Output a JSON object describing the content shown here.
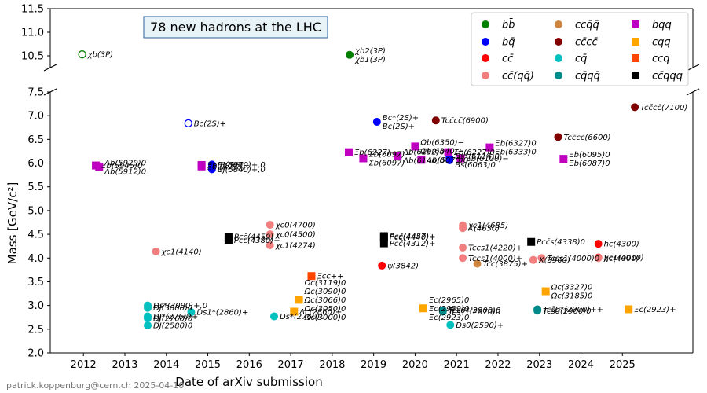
{
  "chart_data": {
    "type": "scatter",
    "title": "78 new hadrons at the LHC",
    "xlabel": "Date of arXiv submission",
    "ylabel": "Mass [GeV/c²]",
    "credit": "patrick.koppenburg@cern.ch 2025-04-10",
    "xlim": [
      2011.2,
      2026.7
    ],
    "ylim_lower": [
      2.0,
      7.5
    ],
    "ylim_upper": [
      10.25,
      11.5
    ],
    "legend_position": "top-right",
    "xticks": [
      "2012",
      "2013",
      "2014",
      "2015",
      "2016",
      "2017",
      "2018",
      "2019",
      "2020",
      "2021",
      "2022",
      "2023",
      "2024",
      "2025"
    ],
    "yticks_lower": [
      "2.0",
      "2.5",
      "3.0",
      "3.5",
      "4.0",
      "4.5",
      "5.0",
      "5.5",
      "6.0",
      "6.5",
      "7.0",
      "7.5"
    ],
    "yticks_upper": [
      "10.5",
      "11.0",
      "11.5"
    ],
    "categories": [
      {
        "key": "bb",
        "name": "bb̄",
        "color": "#008000",
        "shape": "circle"
      },
      {
        "key": "bq",
        "name": "bq̄",
        "color": "#0000ff",
        "shape": "circle"
      },
      {
        "key": "cc",
        "name": "cc̄",
        "color": "#ff0000",
        "shape": "circle"
      },
      {
        "key": "ccqq",
        "name": "cc̄(qq̄)",
        "color": "#f08080",
        "shape": "circle"
      },
      {
        "key": "ccqqbar",
        "name": "ccq̄q̄",
        "color": "#cd853f",
        "shape": "circle"
      },
      {
        "key": "cccc",
        "name": "cc̄cc̄",
        "color": "#800000",
        "shape": "circle"
      },
      {
        "key": "cq",
        "name": "cq̄",
        "color": "#00c0c0",
        "shape": "circle"
      },
      {
        "key": "cqqq",
        "name": "cq̄qq̄",
        "color": "#008b8b",
        "shape": "circle"
      },
      {
        "key": "bqq",
        "name": "bqq",
        "color": "#c000c0",
        "shape": "square"
      },
      {
        "key": "cqq",
        "name": "cqq",
        "color": "#ffa500",
        "shape": "square"
      },
      {
        "key": "ccq",
        "name": "ccq",
        "color": "#ff4500",
        "shape": "square"
      },
      {
        "key": "ccqqq",
        "name": "cc̄qqq",
        "color": "#000000",
        "shape": "square"
      }
    ],
    "points": [
      {
        "cat": "bb",
        "x": 2011.97,
        "y": 10.53,
        "open": true,
        "labels": [
          "χb(3P)"
        ]
      },
      {
        "cat": "bb",
        "x": 2018.42,
        "y": 10.52,
        "labels": [
          "χb2(3P)",
          "χb1(3P)"
        ]
      },
      {
        "cat": "bq",
        "x": 2014.53,
        "y": 6.84,
        "open": true,
        "labels": [
          "Bc(2S)+"
        ]
      },
      {
        "cat": "bq",
        "x": 2015.1,
        "y": 5.97,
        "labels": [
          "BJ(5970)+,0"
        ]
      },
      {
        "cat": "bq",
        "x": 2015.1,
        "y": 5.87,
        "labels": [
          "BJ(5840)+,0"
        ]
      },
      {
        "cat": "bq",
        "x": 2019.08,
        "y": 6.87,
        "labels": [
          "Bc*(2S)+",
          "Bc(2S)+"
        ]
      },
      {
        "cat": "bq",
        "x": 2020.83,
        "y": 6.11,
        "labels": []
      },
      {
        "cat": "bq",
        "x": 2020.83,
        "y": 6.06,
        "labels": [
          "Bs*(6114)0",
          "Bs(6063)0"
        ]
      },
      {
        "cat": "cc",
        "x": 2019.2,
        "y": 3.84,
        "labels": [
          "ψ(3842)"
        ]
      },
      {
        "cat": "cc",
        "x": 2024.42,
        "y": 4.3,
        "labels": [
          "hc(4300)"
        ]
      },
      {
        "cat": "cc",
        "x": 2024.42,
        "y": 4.01,
        "labels": [
          "χc1(4010)"
        ]
      },
      {
        "cat": "ccqq",
        "x": 2013.75,
        "y": 4.14,
        "labels": [
          "χc1(4140)"
        ]
      },
      {
        "cat": "ccqq",
        "x": 2016.5,
        "y": 4.7,
        "labels": [
          "χc0(4700)"
        ]
      },
      {
        "cat": "ccqq",
        "x": 2016.5,
        "y": 4.5,
        "labels": [
          "χc0(4500)"
        ]
      },
      {
        "cat": "ccqq",
        "x": 2016.5,
        "y": 4.27,
        "labels": [
          "χc1(4274)"
        ]
      },
      {
        "cat": "ccqq",
        "x": 2021.15,
        "y": 4.69,
        "labels": [
          "χc1(4685)"
        ]
      },
      {
        "cat": "ccqq",
        "x": 2021.15,
        "y": 4.63,
        "labels": [
          "X(4630)"
        ]
      },
      {
        "cat": "ccqq",
        "x": 2021.15,
        "y": 4.22,
        "labels": [
          "Tccs1(4220)+"
        ]
      },
      {
        "cat": "ccqq",
        "x": 2021.15,
        "y": 4.0,
        "labels": [
          "Tccs1(4000)+"
        ]
      },
      {
        "cat": "ccqq",
        "x": 2022.85,
        "y": 3.96,
        "labels": [
          "X(3960)"
        ]
      },
      {
        "cat": "ccqq",
        "x": 2023.05,
        "y": 4.0,
        "labels": [
          "Tcs̄s1(4000)0"
        ]
      },
      {
        "cat": "ccqq",
        "x": 2024.42,
        "y": 4.0,
        "labels": [
          "hc(4000)"
        ]
      },
      {
        "cat": "ccqqbar",
        "x": 2021.5,
        "y": 3.88,
        "labels": [
          "Tcc(3875)+"
        ]
      },
      {
        "cat": "cccc",
        "x": 2020.5,
        "y": 6.9,
        "labels": [
          "Tcc̄cc̄(6900)"
        ]
      },
      {
        "cat": "cccc",
        "x": 2023.45,
        "y": 6.55,
        "labels": [
          "Tcc̄cc̄(6600)"
        ]
      },
      {
        "cat": "cccc",
        "x": 2025.3,
        "y": 7.18,
        "labels": [
          "Tcc̄cc̄(7100)"
        ]
      },
      {
        "cat": "cq",
        "x": 2013.55,
        "y": 3.0,
        "labels": [
          "Ds*(3000)+,0"
        ]
      },
      {
        "cat": "cq",
        "x": 2013.55,
        "y": 2.95,
        "labels": [
          "DJ(3000)0"
        ]
      },
      {
        "cat": "cq",
        "x": 2013.55,
        "y": 2.77,
        "labels": [
          "DJ*(2760)+"
        ]
      },
      {
        "cat": "cq",
        "x": 2013.55,
        "y": 2.73,
        "labels": [
          "DJ(2760)0"
        ]
      },
      {
        "cat": "cq",
        "x": 2013.55,
        "y": 2.58,
        "labels": [
          "DJ(2580)0"
        ]
      },
      {
        "cat": "cq",
        "x": 2014.6,
        "y": 2.86,
        "labels": [
          "Ds1*(2860)+"
        ]
      },
      {
        "cat": "cq",
        "x": 2016.6,
        "y": 2.77,
        "labels": [
          "Ds*(2760)0"
        ]
      },
      {
        "cat": "cq",
        "x": 2020.85,
        "y": 2.59,
        "labels": [
          "Ds0(2590)+"
        ]
      },
      {
        "cat": "cqqq",
        "x": 2020.67,
        "y": 2.9,
        "labels": [
          "Tcs0*(2900)0"
        ]
      },
      {
        "cat": "cqqq",
        "x": 2020.67,
        "y": 2.87,
        "labels": [
          "Tcs̄1*(2870)0"
        ]
      },
      {
        "cat": "cqqq",
        "x": 2022.95,
        "y": 2.92,
        "labels": [
          "Tcs̄0*(2900)++"
        ]
      },
      {
        "cat": "cqqq",
        "x": 2022.95,
        "y": 2.89,
        "labels": [
          "Tcs̄0(2900)0"
        ]
      },
      {
        "cat": "bqq",
        "x": 2012.3,
        "y": 5.95,
        "labels": [
          "Ξb(5945)0"
        ]
      },
      {
        "cat": "bqq",
        "x": 2012.38,
        "y": 5.92,
        "labels": [
          "Λb(5920)0",
          "Λb(5912)0"
        ]
      },
      {
        "cat": "bqq",
        "x": 2014.85,
        "y": 5.96,
        "labels": [
          "Ξb(5955)−"
        ]
      },
      {
        "cat": "bqq",
        "x": 2014.85,
        "y": 5.93,
        "labels": [
          "Ξb'(5935)−"
        ]
      },
      {
        "cat": "bqq",
        "x": 2018.4,
        "y": 6.23,
        "labels": [
          "Ξb(6227)−"
        ]
      },
      {
        "cat": "bqq",
        "x": 2018.75,
        "y": 6.1,
        "labels": [
          "Σb(6097)+",
          "Σb(6097)−"
        ]
      },
      {
        "cat": "bqq",
        "x": 2019.58,
        "y": 6.15,
        "labels": [
          "Λb(6152)0",
          "Λb(6146)0"
        ]
      },
      {
        "cat": "bqq",
        "x": 2020.0,
        "y": 6.35,
        "labels": [
          "Ωb(6350)−",
          "Ωb(6340)−"
        ]
      },
      {
        "cat": "bqq",
        "x": 2020.15,
        "y": 6.07,
        "labels": [
          "Λb(6070)0"
        ]
      },
      {
        "cat": "bqq",
        "x": 2020.8,
        "y": 6.23,
        "labels": [
          "Ξb(6227)0"
        ]
      },
      {
        "cat": "bqq",
        "x": 2021.1,
        "y": 6.1,
        "labels": [
          "Ξb(6100)−"
        ]
      },
      {
        "cat": "bqq",
        "x": 2021.8,
        "y": 6.33,
        "labels": [
          "Ξb(6327)0",
          "Ξb(6333)0"
        ]
      },
      {
        "cat": "bqq",
        "x": 2023.58,
        "y": 6.09,
        "labels": [
          "Ξb(6095)0",
          "Ξb(6087)0"
        ]
      },
      {
        "cat": "cqq",
        "x": 2017.08,
        "y": 2.87,
        "labels": [
          "Λc(2860)+"
        ]
      },
      {
        "cat": "cqq",
        "x": 2017.2,
        "y": 3.12,
        "labels": [
          "Ωc(3119)0",
          "Ωc(3090)0",
          "Ωc(3066)0",
          "Ωc(3050)0",
          "Ωc(3000)0"
        ]
      },
      {
        "cat": "cqq",
        "x": 2020.2,
        "y": 2.94,
        "labels": [
          "Ξc(2965)0",
          "Ξc(2939)0",
          "Ξc(2923)0"
        ]
      },
      {
        "cat": "cqq",
        "x": 2023.15,
        "y": 3.3,
        "labels": [
          "Ωc(3327)0",
          "Ωc(3185)0"
        ]
      },
      {
        "cat": "cqq",
        "x": 2025.15,
        "y": 2.92,
        "labels": [
          "Ξc(2923)+"
        ]
      },
      {
        "cat": "ccq",
        "x": 2017.5,
        "y": 3.62,
        "labels": [
          "Ξcc++"
        ]
      },
      {
        "cat": "ccqqq",
        "x": 2015.5,
        "y": 4.45,
        "labels": [
          "Pcc̄(4450)+"
        ]
      },
      {
        "cat": "ccqqq",
        "x": 2015.5,
        "y": 4.38,
        "labels": [
          "Pcc̄(4380)+"
        ]
      },
      {
        "cat": "ccqqq",
        "x": 2019.25,
        "y": 4.46,
        "labels": [
          "Pcc̄(4457)+"
        ]
      },
      {
        "cat": "ccqqq",
        "x": 2019.25,
        "y": 4.44,
        "labels": [
          "Pcc̄(4440)+"
        ]
      },
      {
        "cat": "ccqqq",
        "x": 2019.25,
        "y": 4.31,
        "labels": [
          "Pcc̄(4312)+"
        ]
      },
      {
        "cat": "ccqqq",
        "x": 2022.8,
        "y": 4.34,
        "labels": [
          "Pcc̄s(4338)0"
        ]
      }
    ]
  }
}
